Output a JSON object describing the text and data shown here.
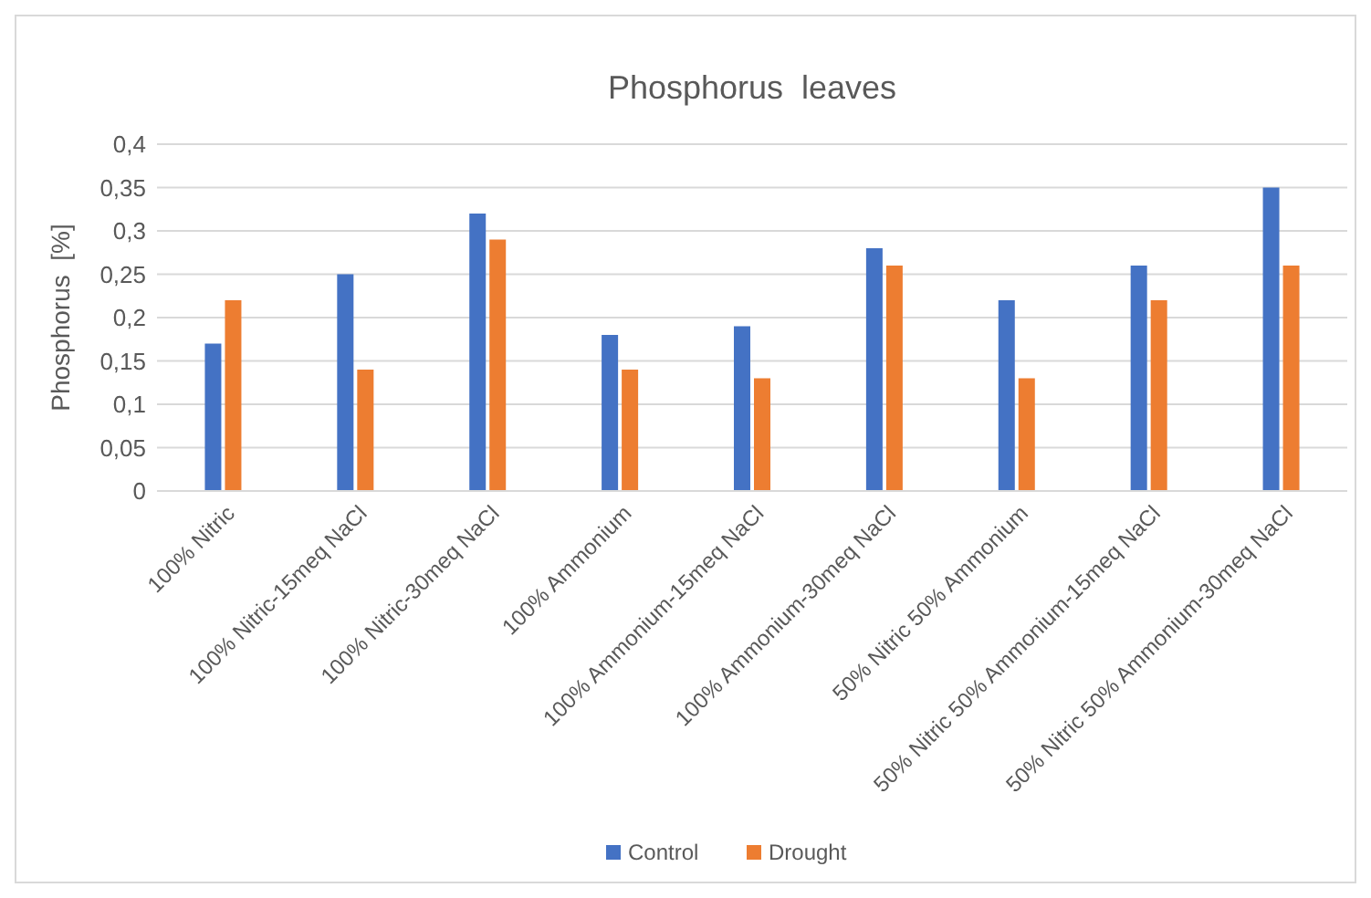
{
  "chart_data": {
    "type": "bar",
    "title": "Phosphorus  leaves",
    "ylabel": "Phosphorus  [%]",
    "categories": [
      "100% Nitric",
      "100% Nitric-15meq NaCl",
      "100% Nitric-30meq NaCl",
      "100% Ammonium",
      "100% Ammonium-15meq NaCl",
      "100% Ammonium-30meq NaCl",
      "50% Nitric 50% Ammonium",
      "50% Nitric 50% Ammonium-15meq NaCl",
      "50% Nitric 50% Ammonium-30meq NaCl"
    ],
    "series": [
      {
        "name": "Control",
        "color": "#4472c4",
        "values": [
          0.17,
          0.25,
          0.32,
          0.18,
          0.19,
          0.28,
          0.22,
          0.26,
          0.35
        ]
      },
      {
        "name": "Drought",
        "color": "#ed7d31",
        "values": [
          0.22,
          0.14,
          0.29,
          0.14,
          0.13,
          0.26,
          0.13,
          0.22,
          0.26
        ]
      }
    ],
    "ylim": [
      0,
      0.4
    ],
    "yticks": [
      {
        "value": 0,
        "label": "0"
      },
      {
        "value": 0.05,
        "label": "0,05"
      },
      {
        "value": 0.1,
        "label": "0,1"
      },
      {
        "value": 0.15,
        "label": "0,15"
      },
      {
        "value": 0.2,
        "label": "0,2"
      },
      {
        "value": 0.25,
        "label": "0,25"
      },
      {
        "value": 0.3,
        "label": "0,3"
      },
      {
        "value": 0.35,
        "label": "0,35"
      },
      {
        "value": 0.4,
        "label": "0,4"
      }
    ],
    "grid": "y",
    "legend": "bottom"
  }
}
